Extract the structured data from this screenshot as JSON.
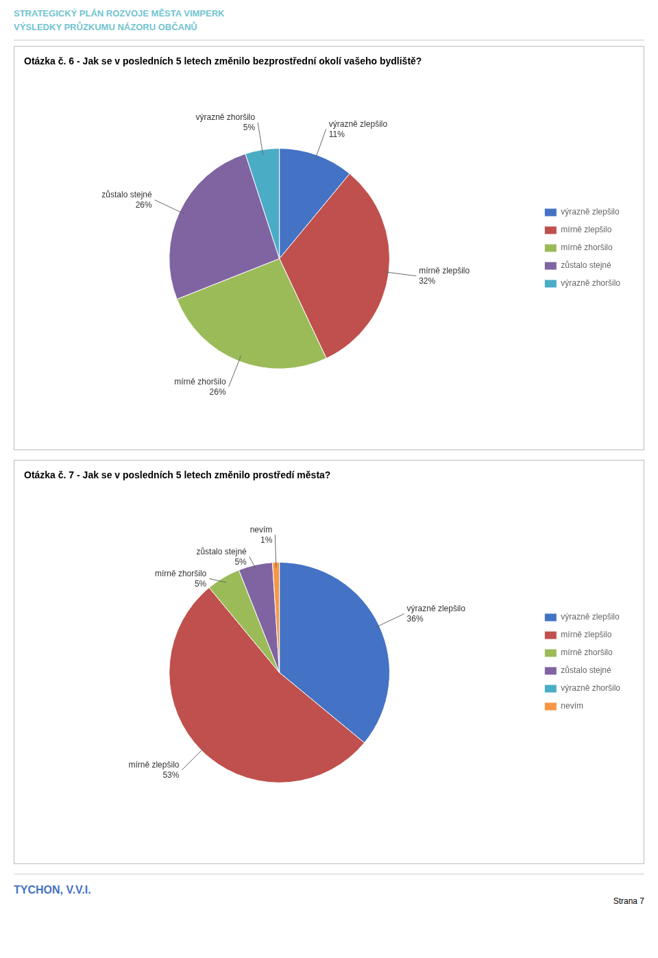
{
  "header": {
    "texts": [
      "STRATEGICKÝ PLÁN ROZVOJE MĚSTA VIMPERK",
      "VÝSLEDKY PRŮZKUMU NÁZORU OBČANŮ"
    ],
    "color": "#70C4D0"
  },
  "footer": {
    "text": "TYCHON, V.V.I.",
    "color": "#4472C4",
    "page": "Strana 7"
  },
  "chart_data": [
    {
      "type": "pie",
      "title": "Otázka č. 6 - Jak se v posledních 5 letech změnilo bezprostřední okolí vašeho bydliště?",
      "categories": [
        "výrazně zlepšilo",
        "mírně zlepšilo",
        "mírně zhoršilo",
        "zůstalo stejné",
        "výrazně zhoršilo"
      ],
      "values": [
        11,
        32,
        26,
        26,
        5
      ],
      "value_labels": [
        "11%",
        "32%",
        "26%",
        "26%",
        "5%"
      ],
      "colors": [
        "#4472C4",
        "#C0504D",
        "#9BBB59",
        "#8064A2",
        "#4BACC6"
      ],
      "data_labels": true,
      "legend": "right"
    },
    {
      "type": "pie",
      "title": "Otázka č. 7 - Jak se v posledních 5 letech změnilo prostředí města?",
      "categories": [
        "výrazně zlepšilo",
        "mírně zlepšilo",
        "mírně zhoršilo",
        "zůstalo stejné",
        "výrazně zhoršilo",
        "nevím"
      ],
      "values": [
        36,
        53,
        5,
        5,
        null,
        1
      ],
      "value_labels": [
        "36%",
        "53%",
        "5%",
        "5%",
        null,
        "1%"
      ],
      "colors": [
        "#4472C4",
        "#C0504D",
        "#9BBB59",
        "#8064A2",
        "#4BACC6",
        "#F79646"
      ],
      "data_labels": true,
      "legend": "right"
    }
  ]
}
